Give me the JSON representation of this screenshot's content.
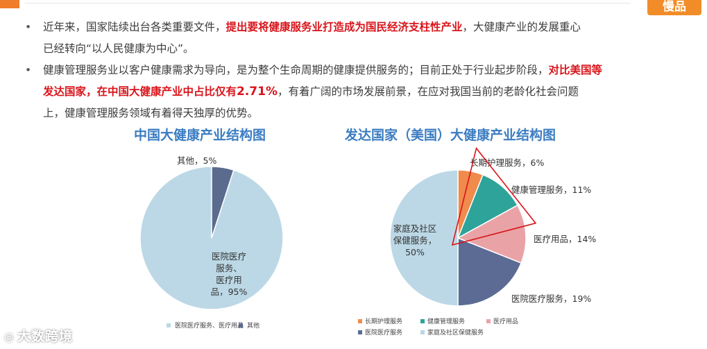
{
  "header": {
    "brand": "慢品"
  },
  "bullets": [
    {
      "lines": [
        [
          {
            "t": "近年来，国家陆续出台各类重要文件，",
            "s": "n"
          },
          {
            "t": "提出要将健康服务业打造成为国民经济支柱性产业",
            "s": "h"
          },
          {
            "t": "，大健康产业的发展重心",
            "s": "n"
          }
        ],
        [
          {
            "t": "已经转向“以人民健康为中心”。",
            "s": "n"
          }
        ]
      ]
    },
    {
      "lines": [
        [
          {
            "t": "健康管理服务业以客户健康需求为导向，是为整个生命周期的健康提供服务的；目前正处于行业起步阶段，",
            "s": "n"
          },
          {
            "t": "对比美国等",
            "s": "h"
          }
        ],
        [
          {
            "t": "发达国家，在中国大健康产业中占比仅有",
            "s": "h"
          },
          {
            "t": "2.71%",
            "s": "hb"
          },
          {
            "t": "，有着广阔的市场发展前景，在应对我国当前的老龄化社会问题",
            "s": "n"
          }
        ],
        [
          {
            "t": "上，健康管理服务领域有着得天独厚的优势。",
            "s": "n"
          }
        ]
      ]
    }
  ],
  "chart_data": [
    {
      "type": "pie",
      "title": "中国大健康产业结构图",
      "slices": [
        {
          "name": "医院医疗服务、医疗用品",
          "value": 95,
          "color": "#bcd8e6",
          "label_lines": [
            "医院医疗",
            "服务、",
            "医疗用",
            "品，95%"
          ]
        },
        {
          "name": "其他",
          "value": 5,
          "color": "#5b6b8e",
          "label_lines": [
            "其他，5%"
          ]
        }
      ],
      "legend": [
        "医院医疗服务、医疗用品",
        "其他"
      ],
      "legend_position": "bottom"
    },
    {
      "type": "pie",
      "title": "发达国家（美国）大健康产业结构图",
      "slices": [
        {
          "name": "长期护理服务",
          "value": 6,
          "color": "#f08b4c",
          "label_lines": [
            "长期护理服务，6%"
          ]
        },
        {
          "name": "健康管理服务",
          "value": 11,
          "color": "#2ea39a",
          "label_lines": [
            "健康管理服务，11%"
          ]
        },
        {
          "name": "医疗用品",
          "value": 14,
          "color": "#e9a3a6",
          "label_lines": [
            "医疗用品，14%"
          ]
        },
        {
          "name": "医院医疗服务",
          "value": 19,
          "color": "#5b6b94",
          "label_lines": [
            "医院医疗服务，19%"
          ]
        },
        {
          "name": "家庭及社区保健服务",
          "value": 50,
          "color": "#bcd8e6",
          "label_lines": [
            "家庭及社区",
            "保健服务，",
            "50%"
          ]
        }
      ],
      "legend": [
        "长期护理服务",
        "健康管理服务",
        "医疗用品",
        "医院医疗服务",
        "家庭及社区保健服务"
      ],
      "legend_position": "bottom",
      "annotation": "red outline highlighting 健康管理服务 slice"
    }
  ],
  "watermark": {
    "text": "大数跨境",
    "icon": "logo-icon"
  }
}
